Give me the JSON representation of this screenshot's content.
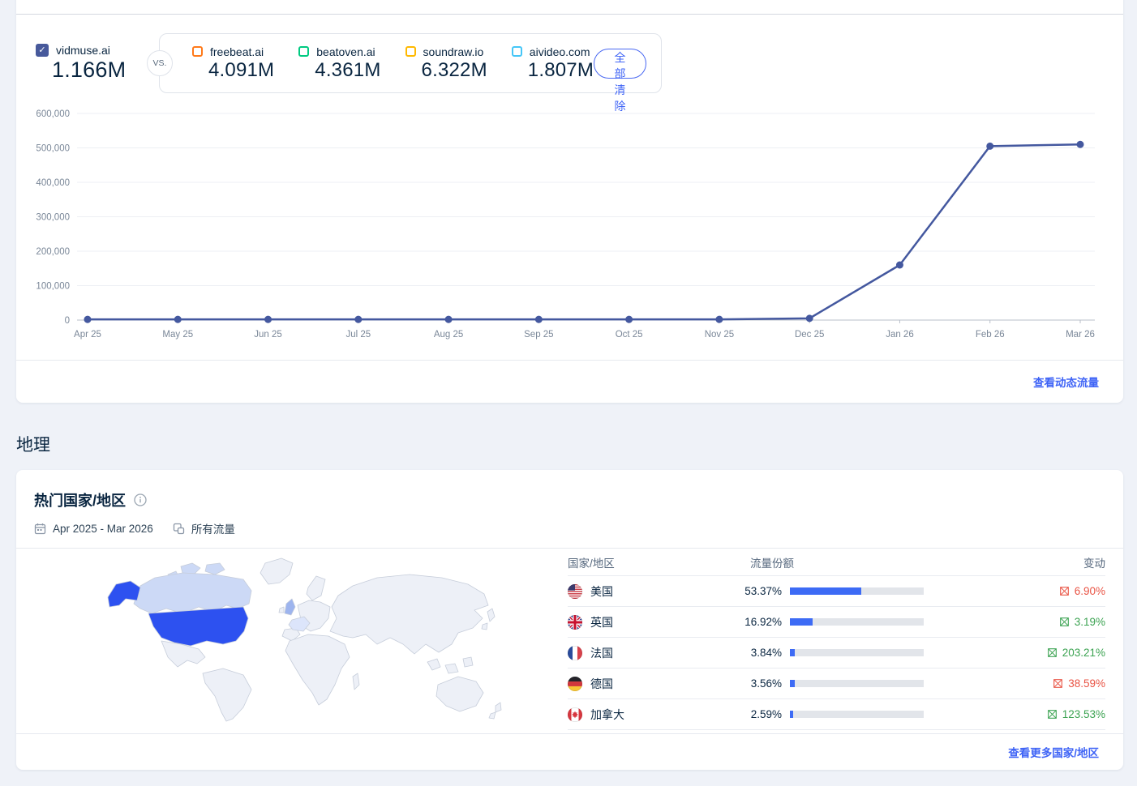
{
  "comparison": {
    "primary": {
      "domain": "vidmuse.ai",
      "value": "1.166M",
      "color": "#47599b"
    },
    "vs_label": "VS.",
    "competitors": [
      {
        "domain": "freebeat.ai",
        "value": "4.091M",
        "color": "#ff7a1a"
      },
      {
        "domain": "beatoven.ai",
        "value": "4.361M",
        "color": "#00ca81"
      },
      {
        "domain": "soundraw.io",
        "value": "6.322M",
        "color": "#ffb900"
      },
      {
        "domain": "aivideo.com",
        "value": "1.807M",
        "color": "#45c6f7"
      }
    ],
    "clear_all_label": "全部清除"
  },
  "chart_data": {
    "type": "line",
    "title": "",
    "x": [
      "Apr 25",
      "May 25",
      "Jun 25",
      "Jul 25",
      "Aug 25",
      "Sep 25",
      "Oct 25",
      "Nov 25",
      "Dec 25",
      "Jan 26",
      "Feb 26",
      "Mar 26"
    ],
    "series": [
      {
        "name": "vidmuse.ai",
        "color": "#44589f",
        "values": [
          2000,
          2000,
          2000,
          2000,
          2000,
          2000,
          2000,
          2000,
          5000,
          160000,
          505000,
          510000
        ]
      }
    ],
    "ylim": [
      0,
      600000
    ],
    "ytick_step": 100000,
    "xlabel": "",
    "ylabel": "",
    "grid": true,
    "legend_position": "none"
  },
  "chart_footer": {
    "link_label": "查看动态流量"
  },
  "geography": {
    "section_title": "地理",
    "card_title": "热门国家/地区",
    "date_range": "Apr 2025 - Mar 2026",
    "traffic_label": "所有流量",
    "table": {
      "headers": [
        "国家/地区",
        "流量份额",
        "变动"
      ],
      "rows": [
        {
          "country": "美国",
          "flag": "us",
          "share": "53.37%",
          "share_pct": 53.37,
          "change": "6.90%",
          "direction": "down"
        },
        {
          "country": "英国",
          "flag": "gb",
          "share": "16.92%",
          "share_pct": 16.92,
          "change": "3.19%",
          "direction": "up"
        },
        {
          "country": "法国",
          "flag": "fr",
          "share": "3.84%",
          "share_pct": 3.84,
          "change": "203.21%",
          "direction": "up"
        },
        {
          "country": "德国",
          "flag": "de",
          "share": "3.56%",
          "share_pct": 3.56,
          "change": "38.59%",
          "direction": "down"
        },
        {
          "country": "加拿大",
          "flag": "ca",
          "share": "2.59%",
          "share_pct": 2.59,
          "change": "123.53%",
          "direction": "up"
        }
      ]
    },
    "footer_link": "查看更多国家/地区",
    "colors": {
      "up": "#3ca352",
      "down": "#e95445",
      "bar_fill": "#3d6bf5",
      "bar_track": "#e2e5ea"
    },
    "map": {
      "highlights": {
        "us": "#2d51f0",
        "ca": "#ccd9f6",
        "gb": "#9db4ee",
        "fr": "#dce5fb"
      },
      "default_fill": "#edf0f7",
      "border": "#c6cdda"
    }
  }
}
